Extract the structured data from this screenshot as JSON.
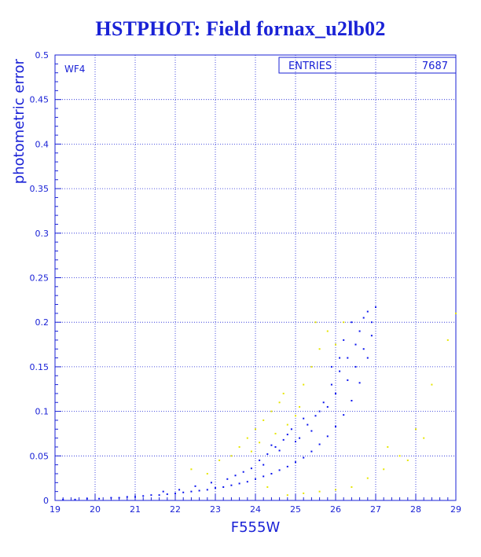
{
  "colors": {
    "axis": "#1a22d6",
    "grid": "#1a22d6",
    "series_blue": "#0a14ee",
    "series_yellow": "#e6e600",
    "background": "#ffffff"
  },
  "chart_data": {
    "type": "scatter",
    "title": "HSTPHOT: Field fornax_u2lb02",
    "xlabel": "F555W",
    "ylabel": "photometric error",
    "panel_label": "WF4",
    "stats_box": {
      "label": "ENTRIES",
      "value": "7687"
    },
    "xlim": [
      19,
      29
    ],
    "ylim": [
      0,
      0.5
    ],
    "x_ticks": [
      19,
      20,
      21,
      22,
      23,
      24,
      25,
      26,
      27,
      28,
      29
    ],
    "y_ticks": [
      0,
      0.05,
      0.1,
      0.15,
      0.2,
      0.25,
      0.3,
      0.35,
      0.4,
      0.45,
      0.5
    ],
    "x_tick_labels": [
      "19",
      "20",
      "21",
      "22",
      "23",
      "24",
      "25",
      "26",
      "27",
      "28",
      "29"
    ],
    "y_tick_labels": [
      "0",
      "0.05",
      "0.1",
      "0.15",
      "0.2",
      "0.25",
      "0.3",
      "0.35",
      "0.4",
      "0.45",
      "0.5"
    ],
    "grid": true,
    "series": [
      {
        "color": "#0a14ee",
        "points": [
          [
            19.2,
            0.001
          ],
          [
            19.5,
            0.001
          ],
          [
            19.8,
            0.002
          ],
          [
            20.1,
            0.002
          ],
          [
            20.4,
            0.003
          ],
          [
            20.6,
            0.003
          ],
          [
            20.8,
            0.004
          ],
          [
            21.0,
            0.004
          ],
          [
            21.2,
            0.005
          ],
          [
            21.4,
            0.006
          ],
          [
            21.6,
            0.006
          ],
          [
            21.8,
            0.007
          ],
          [
            22.0,
            0.008
          ],
          [
            22.2,
            0.009
          ],
          [
            22.4,
            0.01
          ],
          [
            22.6,
            0.011
          ],
          [
            22.8,
            0.012
          ],
          [
            23.0,
            0.014
          ],
          [
            23.2,
            0.015
          ],
          [
            23.4,
            0.017
          ],
          [
            23.6,
            0.019
          ],
          [
            23.8,
            0.021
          ],
          [
            24.0,
            0.024
          ],
          [
            24.2,
            0.027
          ],
          [
            24.4,
            0.03
          ],
          [
            24.6,
            0.034
          ],
          [
            24.8,
            0.038
          ],
          [
            25.0,
            0.043
          ],
          [
            25.2,
            0.048
          ],
          [
            25.4,
            0.055
          ],
          [
            25.6,
            0.063
          ],
          [
            25.8,
            0.072
          ],
          [
            26.0,
            0.083
          ],
          [
            26.2,
            0.096
          ],
          [
            26.4,
            0.112
          ],
          [
            26.6,
            0.132
          ],
          [
            26.8,
            0.16
          ],
          [
            26.9,
            0.185
          ],
          [
            27.0,
            0.217
          ],
          [
            23.5,
            0.028
          ],
          [
            23.9,
            0.036
          ],
          [
            24.1,
            0.045
          ],
          [
            24.3,
            0.052
          ],
          [
            24.5,
            0.06
          ],
          [
            24.7,
            0.068
          ],
          [
            24.9,
            0.08
          ],
          [
            25.1,
            0.07
          ],
          [
            25.3,
            0.085
          ],
          [
            25.5,
            0.095
          ],
          [
            25.7,
            0.11
          ],
          [
            25.9,
            0.13
          ],
          [
            26.1,
            0.145
          ],
          [
            26.3,
            0.16
          ],
          [
            26.5,
            0.175
          ],
          [
            26.6,
            0.19
          ],
          [
            26.7,
            0.205
          ],
          [
            26.8,
            0.212
          ],
          [
            26.2,
            0.18
          ],
          [
            26.4,
            0.2
          ],
          [
            26.0,
            0.12
          ],
          [
            25.6,
            0.1
          ],
          [
            25.2,
            0.092
          ],
          [
            24.8,
            0.074
          ],
          [
            24.6,
            0.056
          ],
          [
            25.0,
            0.066
          ],
          [
            25.4,
            0.078
          ],
          [
            25.8,
            0.105
          ],
          [
            26.3,
            0.135
          ],
          [
            26.5,
            0.15
          ],
          [
            26.7,
            0.17
          ],
          [
            26.9,
            0.2
          ],
          [
            26.1,
            0.16
          ],
          [
            25.9,
            0.15
          ],
          [
            24.4,
            0.062
          ],
          [
            24.2,
            0.04
          ],
          [
            23.7,
            0.032
          ],
          [
            23.3,
            0.024
          ],
          [
            22.9,
            0.02
          ],
          [
            22.5,
            0.016
          ],
          [
            22.1,
            0.012
          ],
          [
            21.7,
            0.01
          ]
        ]
      },
      {
        "color": "#e6e600",
        "points": [
          [
            22.4,
            0.035
          ],
          [
            22.8,
            0.03
          ],
          [
            23.1,
            0.045
          ],
          [
            23.4,
            0.05
          ],
          [
            23.6,
            0.06
          ],
          [
            23.8,
            0.07
          ],
          [
            24.0,
            0.08
          ],
          [
            24.2,
            0.09
          ],
          [
            24.4,
            0.1
          ],
          [
            24.6,
            0.11
          ],
          [
            24.8,
            0.085
          ],
          [
            25.0,
            0.095
          ],
          [
            25.2,
            0.13
          ],
          [
            25.4,
            0.15
          ],
          [
            25.6,
            0.17
          ],
          [
            25.8,
            0.19
          ],
          [
            24.5,
            0.075
          ],
          [
            24.1,
            0.065
          ],
          [
            23.9,
            0.055
          ],
          [
            24.7,
            0.12
          ],
          [
            25.1,
            0.105
          ],
          [
            25.5,
            0.2
          ],
          [
            26.0,
            0.175
          ],
          [
            26.2,
            0.2
          ],
          [
            24.3,
            0.015
          ],
          [
            24.8,
            0.006
          ],
          [
            25.2,
            0.008
          ],
          [
            25.6,
            0.01
          ],
          [
            26.0,
            0.012
          ],
          [
            26.4,
            0.015
          ],
          [
            26.8,
            0.025
          ],
          [
            27.2,
            0.035
          ],
          [
            27.6,
            0.05
          ],
          [
            28.0,
            0.08
          ],
          [
            28.4,
            0.13
          ],
          [
            28.8,
            0.18
          ],
          [
            29.0,
            0.21
          ],
          [
            27.3,
            0.06
          ],
          [
            27.8,
            0.045
          ],
          [
            28.2,
            0.07
          ]
        ]
      }
    ]
  }
}
